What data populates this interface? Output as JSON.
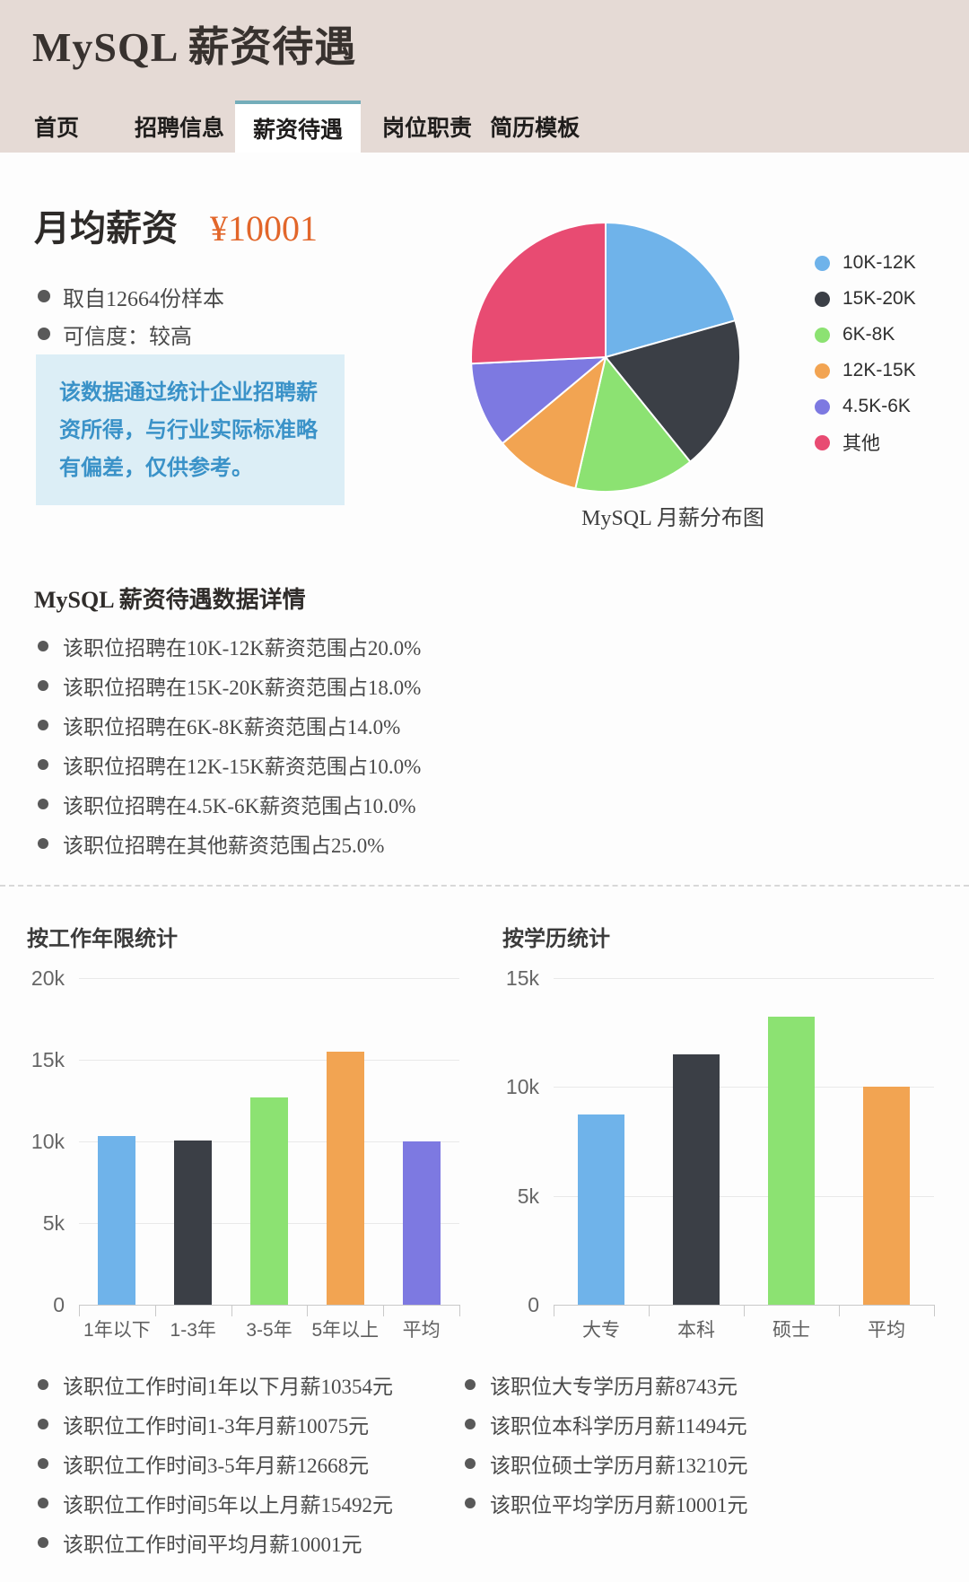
{
  "header": {
    "title": "MySQL 薪资待遇"
  },
  "nav": {
    "tabs": [
      {
        "key": "home",
        "label": "首页",
        "active": false
      },
      {
        "key": "jobs",
        "label": "招聘信息",
        "active": false
      },
      {
        "key": "salary",
        "label": "薪资待遇",
        "active": true
      },
      {
        "key": "duties",
        "label": "岗位职责",
        "active": false
      },
      {
        "key": "resume",
        "label": "简历模板",
        "active": false
      }
    ]
  },
  "summary": {
    "heading": "月均薪资",
    "amount": "¥10001",
    "bullets": [
      "取自12664份样本",
      "可信度：较高"
    ],
    "note": "该数据通过统计企业招聘薪资所得，与行业实际标准略有偏差，仅供参考。"
  },
  "details": {
    "heading": "MySQL 薪资待遇数据详情",
    "items": [
      "该职位招聘在10K-12K薪资范围占20.0%",
      "该职位招聘在15K-20K薪资范围占18.0%",
      "该职位招聘在6K-8K薪资范围占14.0%",
      "该职位招聘在12K-15K薪资范围占10.0%",
      "该职位招聘在4.5K-6K薪资范围占10.0%",
      "该职位招聘在其他薪资范围占25.0%"
    ]
  },
  "work_notes": [
    "该职位工作时间1年以下月薪10354元",
    "该职位工作时间1-3年月薪10075元",
    "该职位工作时间3-5年月薪12668元",
    "该职位工作时间5年以上月薪15492元",
    "该职位工作时间平均月薪10001元"
  ],
  "edu_notes": [
    "该职位大专学历月薪8743元",
    "该职位本科学历月薪11494元",
    "该职位硕士学历月薪13210元",
    "该职位平均学历月薪10001元"
  ],
  "colors": {
    "header_bg": "#e5dad5",
    "tab_active_border": "#74adba",
    "accent_orange": "#e2662a",
    "note_bg": "#dceef6",
    "note_text": "#3a92c8"
  },
  "chart_data": [
    {
      "type": "pie",
      "title": "MySQL 月薪分布图",
      "legend_position": "right",
      "slices": [
        {
          "label": "10K-12K",
          "value": 20.0,
          "color": "#6fb3ea"
        },
        {
          "label": "15K-20K",
          "value": 18.0,
          "color": "#3b3f46"
        },
        {
          "label": "6K-8K",
          "value": 14.0,
          "color": "#8ce272"
        },
        {
          "label": "12K-15K",
          "value": 10.0,
          "color": "#f2a452"
        },
        {
          "label": "4.5K-6K",
          "value": 10.0,
          "color": "#7d79e1"
        },
        {
          "label": "其他",
          "value": 25.0,
          "color": "#e84b72"
        }
      ]
    },
    {
      "type": "bar",
      "title": "按工作年限统计",
      "categories": [
        "1年以下",
        "1-3年",
        "3-5年",
        "5年以上",
        "平均"
      ],
      "values": [
        10354,
        10075,
        12668,
        15492,
        10001
      ],
      "bar_colors": [
        "#6fb3ea",
        "#3b3f46",
        "#8ce272",
        "#f2a452",
        "#7d79e1"
      ],
      "ylim": [
        0,
        20000
      ],
      "yticks": [
        "20k",
        "15k",
        "10k",
        "5k",
        "0"
      ],
      "grid": true
    },
    {
      "type": "bar",
      "title": "按学历统计",
      "categories": [
        "大专",
        "本科",
        "硕士",
        "平均"
      ],
      "values": [
        8743,
        11494,
        13210,
        10001
      ],
      "bar_colors": [
        "#6fb3ea",
        "#3b3f46",
        "#8ce272",
        "#f2a452"
      ],
      "ylim": [
        0,
        15000
      ],
      "yticks": [
        "15k",
        "10k",
        "5k",
        "0"
      ],
      "grid": true
    }
  ]
}
